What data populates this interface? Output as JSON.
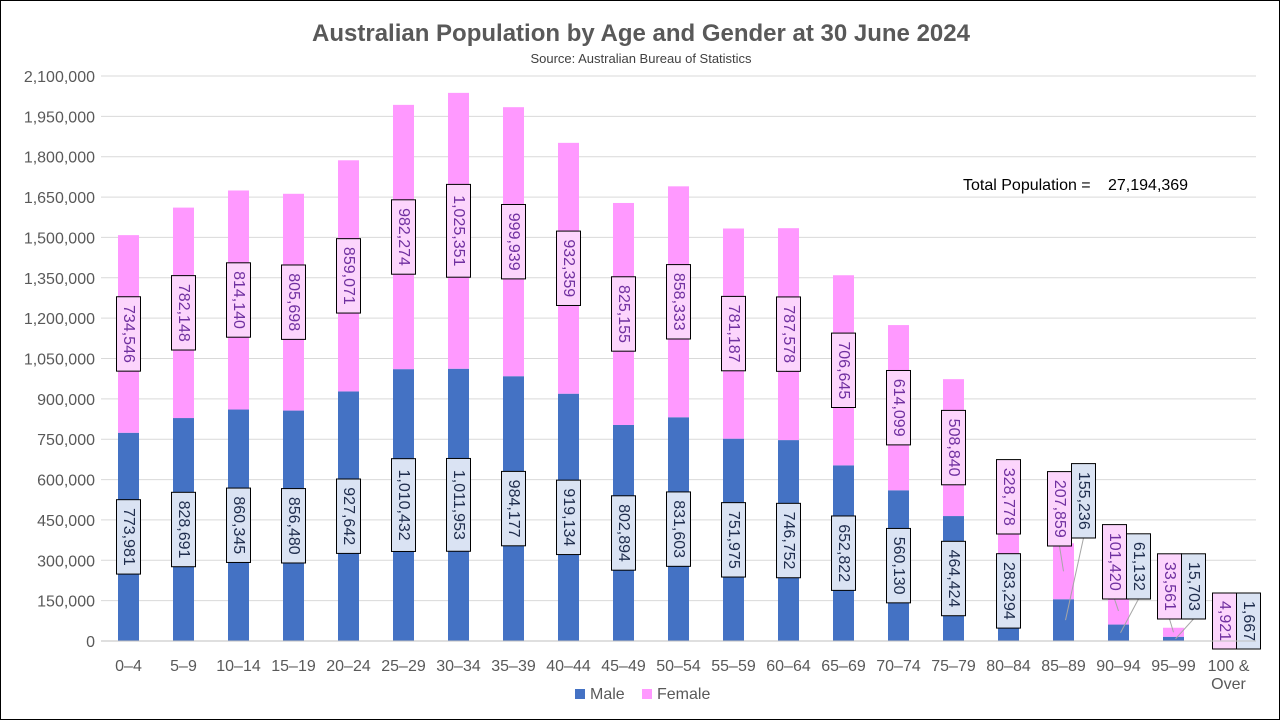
{
  "chart_data": {
    "type": "bar",
    "stacked": true,
    "title": "Australian Population by Age and Gender at 30 June 2024",
    "subtitle": "Source: Australian Bureau of Statistics",
    "annotation": {
      "label": "Total Population =",
      "value": "27,194,369"
    },
    "categories": [
      "0–4",
      "5–9",
      "10–14",
      "15–19",
      "20–24",
      "25–29",
      "30–34",
      "35–39",
      "40–44",
      "45–49",
      "50–54",
      "55–59",
      "60–64",
      "65–69",
      "70–74",
      "75–79",
      "80–84",
      "85–89",
      "90–94",
      "95–99",
      "100 &\nOver"
    ],
    "series": [
      {
        "name": "Male",
        "color": "#4472c4",
        "label_fill": "#dae3f3",
        "label_text": "#1f2d4d",
        "values": [
          773981,
          828691,
          860345,
          856480,
          927642,
          1010432,
          1011953,
          984177,
          919134,
          802894,
          831603,
          751975,
          746752,
          652822,
          560130,
          464424,
          283294,
          155236,
          61132,
          15703,
          1667
        ]
      },
      {
        "name": "Female",
        "color": "#ff99ff",
        "label_fill": "#fcd5fc",
        "label_text": "#7030a0",
        "values": [
          734546,
          782148,
          814140,
          805698,
          859071,
          982274,
          1025351,
          999939,
          932359,
          825155,
          858333,
          781187,
          787578,
          706645,
          614099,
          508840,
          328778,
          207859,
          101420,
          33561,
          4921
        ]
      }
    ],
    "ylim": [
      0,
      2100000
    ],
    "ytick_step": 150000,
    "legend": "bottom",
    "grid": true
  }
}
